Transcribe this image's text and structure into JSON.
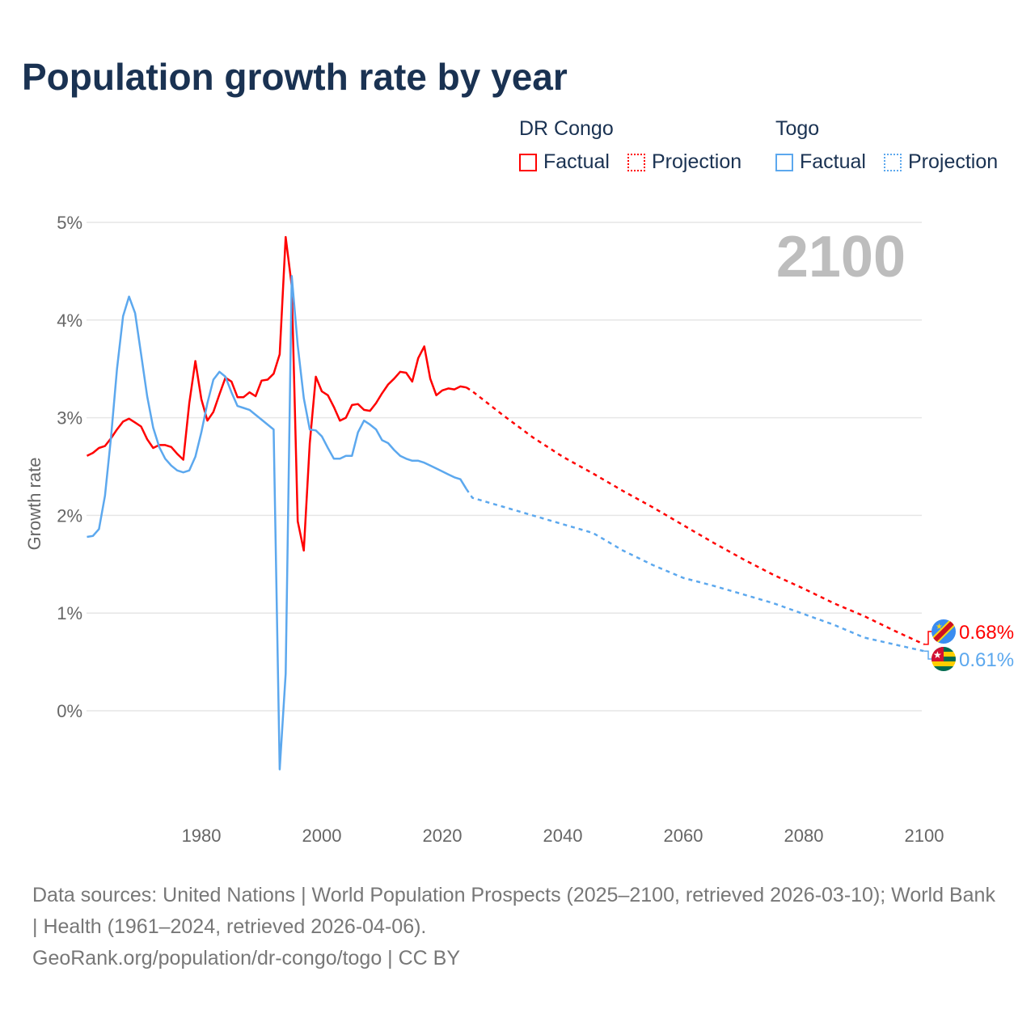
{
  "title": "Population growth rate by year",
  "legend": {
    "groups": [
      {
        "name": "DR Congo",
        "color": "#ff0000",
        "items": [
          "Factual",
          "Projection"
        ]
      },
      {
        "name": "Togo",
        "color": "#5ca8ee",
        "items": [
          "Factual",
          "Projection"
        ]
      }
    ]
  },
  "footer": {
    "sources": "Data sources: United Nations | World Population Prospects (2025–2100, retrieved 2026-03-10); World Bank | Health (1961–2024, retrieved 2026-04-06).",
    "link": "GeoRank.org/population/dr-congo/togo | CC BY"
  },
  "chart_data": {
    "type": "line",
    "title": "Population growth rate by year",
    "xlabel": "",
    "ylabel": "Growth rate",
    "xlim": [
      1961,
      2100
    ],
    "ylim": [
      -0.6,
      5
    ],
    "x_ticks": [
      1980,
      2000,
      2020,
      2040,
      2060,
      2080,
      2100
    ],
    "y_ticks": [
      0,
      1,
      2,
      3,
      4,
      5
    ],
    "y_tick_labels": [
      "0%",
      "1%",
      "2%",
      "3%",
      "4%",
      "5%"
    ],
    "current_year_label": "2100",
    "grid": true,
    "series": [
      {
        "name": "DR Congo",
        "color": "#ff0000",
        "end_label": "0.68%",
        "factual": {
          "x": [
            1961,
            1962,
            1963,
            1964,
            1965,
            1966,
            1967,
            1968,
            1969,
            1970,
            1971,
            1972,
            1973,
            1974,
            1975,
            1976,
            1977,
            1978,
            1979,
            1980,
            1981,
            1982,
            1983,
            1984,
            1985,
            1986,
            1987,
            1988,
            1989,
            1990,
            1991,
            1992,
            1993,
            1994,
            1995,
            1996,
            1997,
            1998,
            1999,
            2000,
            2001,
            2002,
            2003,
            2004,
            2005,
            2006,
            2007,
            2008,
            2009,
            2010,
            2011,
            2012,
            2013,
            2014,
            2015,
            2016,
            2017,
            2018,
            2019,
            2020,
            2021,
            2022,
            2023,
            2024
          ],
          "y": [
            2.61,
            2.64,
            2.69,
            2.71,
            2.79,
            2.88,
            2.96,
            2.99,
            2.95,
            2.91,
            2.78,
            2.69,
            2.72,
            2.72,
            2.7,
            2.63,
            2.57,
            3.15,
            3.58,
            3.19,
            2.97,
            3.06,
            3.24,
            3.41,
            3.37,
            3.21,
            3.21,
            3.26,
            3.22,
            3.38,
            3.39,
            3.45,
            3.65,
            4.85,
            4.35,
            1.94,
            1.64,
            2.74,
            3.42,
            3.27,
            3.23,
            3.11,
            2.97,
            3.0,
            3.13,
            3.14,
            3.08,
            3.07,
            3.15,
            3.25,
            3.34,
            3.4,
            3.47,
            3.46,
            3.37,
            3.61,
            3.73,
            3.4,
            3.23,
            3.28,
            3.3,
            3.29,
            3.32,
            3.31
          ]
        },
        "projection": {
          "x": [
            2024,
            2025,
            2030,
            2035,
            2040,
            2045,
            2050,
            2055,
            2060,
            2065,
            2070,
            2075,
            2080,
            2085,
            2090,
            2095,
            2100
          ],
          "y": [
            3.31,
            3.27,
            3.03,
            2.8,
            2.6,
            2.43,
            2.25,
            2.08,
            1.9,
            1.72,
            1.55,
            1.39,
            1.25,
            1.1,
            0.97,
            0.82,
            0.68
          ]
        }
      },
      {
        "name": "Togo",
        "color": "#5ca8ee",
        "end_label": "0.61%",
        "factual": {
          "x": [
            1961,
            1962,
            1963,
            1964,
            1965,
            1966,
            1967,
            1968,
            1969,
            1970,
            1971,
            1972,
            1973,
            1974,
            1975,
            1976,
            1977,
            1978,
            1979,
            1980,
            1981,
            1982,
            1983,
            1984,
            1985,
            1986,
            1987,
            1988,
            1989,
            1990,
            1991,
            1992,
            1993,
            1994,
            1995,
            1996,
            1997,
            1998,
            1999,
            2000,
            2001,
            2002,
            2003,
            2004,
            2005,
            2006,
            2007,
            2008,
            2009,
            2010,
            2011,
            2012,
            2013,
            2014,
            2015,
            2016,
            2017,
            2018,
            2019,
            2020,
            2021,
            2022,
            2023,
            2024
          ],
          "y": [
            1.78,
            1.79,
            1.86,
            2.2,
            2.8,
            3.5,
            4.04,
            4.24,
            4.07,
            3.65,
            3.22,
            2.9,
            2.7,
            2.58,
            2.51,
            2.46,
            2.44,
            2.46,
            2.6,
            2.85,
            3.15,
            3.39,
            3.47,
            3.42,
            3.26,
            3.12,
            3.1,
            3.08,
            3.03,
            2.98,
            2.93,
            2.88,
            -0.6,
            0.38,
            4.45,
            3.74,
            3.2,
            2.88,
            2.87,
            2.81,
            2.69,
            2.58,
            2.58,
            2.61,
            2.61,
            2.85,
            2.97,
            2.93,
            2.88,
            2.77,
            2.74,
            2.67,
            2.61,
            2.58,
            2.56,
            2.56,
            2.54,
            2.51,
            2.48,
            2.45,
            2.42,
            2.39,
            2.37,
            2.27
          ]
        },
        "projection": {
          "x": [
            2024,
            2025,
            2030,
            2035,
            2040,
            2045,
            2050,
            2055,
            2060,
            2065,
            2070,
            2075,
            2080,
            2085,
            2090,
            2095,
            2100
          ],
          "y": [
            2.27,
            2.18,
            2.09,
            2.0,
            1.91,
            1.82,
            1.64,
            1.49,
            1.36,
            1.28,
            1.19,
            1.1,
            0.99,
            0.88,
            0.75,
            0.68,
            0.61
          ]
        }
      }
    ]
  }
}
